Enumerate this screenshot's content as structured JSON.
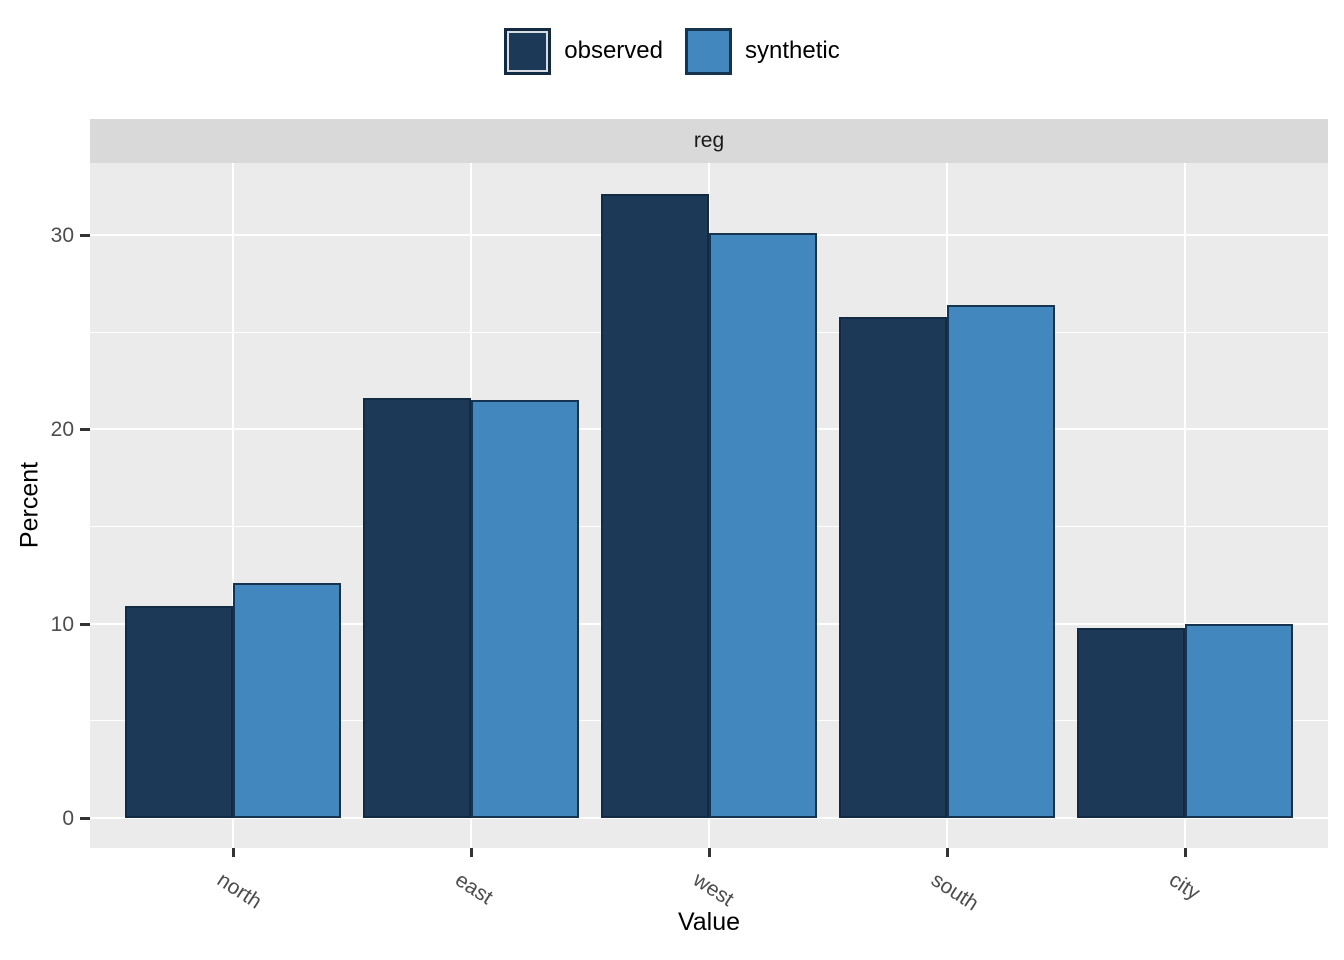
{
  "chart_data": {
    "type": "bar",
    "facet_label": "reg",
    "categories": [
      "north",
      "east",
      "west",
      "south",
      "city"
    ],
    "series": [
      {
        "name": "observed",
        "values": [
          10.9,
          21.6,
          32.1,
          25.8,
          9.8
        ],
        "fill": "#1C3A57",
        "border": "#122B43"
      },
      {
        "name": "synthetic",
        "values": [
          12.1,
          21.5,
          30.1,
          26.4,
          10.0
        ],
        "fill": "#4287BE",
        "border": "#16334F"
      }
    ],
    "title": "",
    "xlabel": "Value",
    "ylabel": "Percent",
    "y_ticks": [
      0,
      10,
      20,
      30
    ],
    "y_minor_ticks": [
      5,
      15,
      25
    ],
    "ylim": [
      -1.6,
      33.7
    ],
    "legend_position": "top",
    "grid": true
  },
  "colors": {
    "panel_bg": "#EBEBEB",
    "strip_bg": "#D9D9D9",
    "gridline": "#FFFFFF",
    "tick_text": "#4D4D4D",
    "axis_title_text": "#000000",
    "tick_mark": "#333333",
    "background": "#FFFFFF"
  }
}
